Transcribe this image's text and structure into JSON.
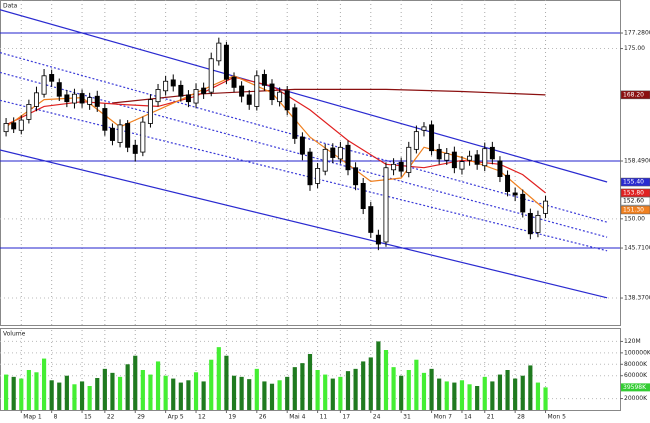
{
  "chart_data": {
    "type": "candlestick",
    "title": "Data",
    "open": [
      162.8,
      164.1,
      163.0,
      164.6,
      166.5,
      168.3,
      171.2,
      170.0,
      168.2,
      167.0,
      168.4,
      166.8,
      168.0,
      166.2,
      163.3,
      161.2,
      164.0,
      160.8,
      159.8,
      164.0,
      167.2,
      168.8,
      170.4,
      169.6,
      168.2,
      167.0,
      169.2,
      168.6,
      173.2,
      175.5,
      170.8,
      169.5,
      168.2,
      166.5,
      171.2,
      169.8,
      167.2,
      168.8,
      166.3,
      162.0,
      159.8,
      155.2,
      157.0,
      160.4,
      158.8,
      160.8,
      157.5,
      155.2,
      151.8,
      147.6,
      146.6,
      157.2,
      158.3,
      156.8,
      160.2,
      163.0,
      163.8,
      160.2,
      158.6,
      159.8,
      157.3,
      158.6,
      159.4,
      157.8,
      160.5,
      158.5,
      156.4,
      153.8,
      153.6,
      150.8,
      148.0,
      150.8
    ],
    "high": [
      164.8,
      164.9,
      165.2,
      167.5,
      169.4,
      172.0,
      171.9,
      170.6,
      168.9,
      169.1,
      169.0,
      168.5,
      168.8,
      166.9,
      164.0,
      164.6,
      164.5,
      161.6,
      165.0,
      168.3,
      169.8,
      171.0,
      171.2,
      170.3,
      168.9,
      169.9,
      170.0,
      174.4,
      176.6,
      176.0,
      171.5,
      170.2,
      168.9,
      171.8,
      171.9,
      170.5,
      169.3,
      169.5,
      166.9,
      162.7,
      160.4,
      158.2,
      161.0,
      161.1,
      161.3,
      161.5,
      158.3,
      156.0,
      152.5,
      148.4,
      158.3,
      158.9,
      159.0,
      161.3,
      163.7,
      164.2,
      164.4,
      161.0,
      160.4,
      160.6,
      159.2,
      160.0,
      160.1,
      161.2,
      161.3,
      159.2,
      157.1,
      154.6,
      154.3,
      151.5,
      151.2,
      153.4
    ],
    "low": [
      162.1,
      162.6,
      162.4,
      164.0,
      165.8,
      167.8,
      169.4,
      167.3,
      166.4,
      166.2,
      166.3,
      166.0,
      165.7,
      162.2,
      160.8,
      160.5,
      159.8,
      158.4,
      159.2,
      163.4,
      166.5,
      168.1,
      168.7,
      167.2,
      166.4,
      166.3,
      167.6,
      168.0,
      172.5,
      169.8,
      168.6,
      167.1,
      166.0,
      165.9,
      168.8,
      166.7,
      166.5,
      165.2,
      161.0,
      158.6,
      154.1,
      154.5,
      156.4,
      158.2,
      158.1,
      156.4,
      154.2,
      150.7,
      147.2,
      145.4,
      145.9,
      156.4,
      156.2,
      156.1,
      159.6,
      162.1,
      159.3,
      158.0,
      157.9,
      156.7,
      156.5,
      157.8,
      157.2,
      157.0,
      158.0,
      155.4,
      153.3,
      152.6,
      150.2,
      147.0,
      147.3,
      150.1
    ],
    "close": [
      164.0,
      163.2,
      164.5,
      166.8,
      168.5,
      171.0,
      170.2,
      168.0,
      167.2,
      168.3,
      167.0,
      167.8,
      166.5,
      163.0,
      161.5,
      163.8,
      160.5,
      159.6,
      164.2,
      167.5,
      169.0,
      170.2,
      169.5,
      168.0,
      167.2,
      169.0,
      168.4,
      173.5,
      175.8,
      170.5,
      169.3,
      168.0,
      166.8,
      171.0,
      169.6,
      167.5,
      168.6,
      166.0,
      161.8,
      159.5,
      155.0,
      157.4,
      160.2,
      159.0,
      160.5,
      157.2,
      155.0,
      151.5,
      148.0,
      146.3,
      157.5,
      158.0,
      157.0,
      160.5,
      162.8,
      163.5,
      160.0,
      158.8,
      159.6,
      157.5,
      158.4,
      159.2,
      158.0,
      160.3,
      158.8,
      156.2,
      154.0,
      153.5,
      151.0,
      147.8,
      150.5,
      152.6
    ],
    "up_color": "#ffffff",
    "down_color": "#000000",
    "xlim": [
      -0.8,
      80.8
    ],
    "xticks": [
      {
        "value": 2,
        "label": "Map 1"
      },
      {
        "value": 6,
        "label": "8"
      },
      {
        "value": 10,
        "label": "15"
      },
      {
        "value": 13,
        "label": "22"
      },
      {
        "value": 17,
        "label": "29"
      },
      {
        "value": 21,
        "label": "Arp 5"
      },
      {
        "value": 25,
        "label": "12"
      },
      {
        "value": 29,
        "label": "19"
      },
      {
        "value": 33,
        "label": "26"
      },
      {
        "value": 37,
        "label": "Mai 4"
      },
      {
        "value": 41,
        "label": "11"
      },
      {
        "value": 44,
        "label": "17"
      },
      {
        "value": 48,
        "label": "24"
      },
      {
        "value": 52,
        "label": "31"
      },
      {
        "value": 56,
        "label": "Mon 7"
      },
      {
        "value": 60,
        "label": "14"
      },
      {
        "value": 63,
        "label": "21"
      },
      {
        "value": 67,
        "label": "28"
      },
      {
        "value": 71,
        "label": "Mon 5"
      }
    ],
    "ylim": [
      134.41,
      182.13
    ],
    "yticks": [
      {
        "value": 177.28,
        "label": "177.2800"
      },
      {
        "value": 175,
        "label": "175.00"
      },
      {
        "value": 158.49,
        "label": "158.4900"
      },
      {
        "value": 150,
        "label": "150.00"
      },
      {
        "value": 145.71,
        "label": "145.7100"
      },
      {
        "value": 138.37,
        "label": "138.3700"
      }
    ],
    "grid": true,
    "levels": [
      177.28,
      158.49,
      145.71
    ],
    "level_color": "#2222cc",
    "overlays": [
      {
        "color": "#2a2ad0",
        "style": "solid",
        "x": [
          -0.8,
          79.1
        ],
        "values": [
          180.7,
          155.4
        ]
      },
      {
        "color": "#2a2ad0",
        "style": "solid",
        "x": [
          -0.8,
          79.1
        ],
        "values": [
          160.1,
          138.4
        ]
      },
      {
        "color": "#3a3ad8",
        "style": "dotted",
        "x": [
          -0.8,
          79.1
        ],
        "values": [
          174.4,
          149.5
        ]
      },
      {
        "color": "#3a3ad8",
        "style": "dotted",
        "x": [
          -0.8,
          79.1
        ],
        "values": [
          171.5,
          147.3
        ]
      },
      {
        "color": "#3a3ad8",
        "style": "dotted",
        "x": [
          -0.8,
          79.1
        ],
        "values": [
          167.4,
          145.3
        ]
      },
      {
        "color": "#8b1010",
        "style": "solid",
        "x": [
          14,
          25,
          38,
          50,
          60,
          71
        ],
        "values": [
          167.0,
          168.3,
          169.0,
          169.0,
          168.7,
          168.2
        ]
      },
      {
        "color": "#e02020",
        "style": "solid",
        "x": [
          0,
          5,
          10,
          15,
          20,
          25,
          30,
          35,
          40,
          45,
          50,
          55,
          60,
          65,
          68,
          71
        ],
        "values": [
          163.8,
          166.5,
          167.2,
          166.8,
          166.5,
          168.0,
          170.8,
          169.5,
          166.0,
          161.5,
          158.0,
          157.5,
          158.6,
          158.0,
          156.5,
          153.8
        ]
      },
      {
        "color": "#f08020",
        "style": "solid",
        "x": [
          0,
          5,
          10,
          15,
          20,
          25,
          30,
          35,
          40,
          45,
          48,
          52,
          55,
          60,
          65,
          71
        ],
        "values": [
          163.5,
          167.5,
          167.8,
          163.5,
          166.0,
          168.5,
          171.0,
          168.5,
          162.0,
          158.0,
          155.5,
          156.0,
          160.5,
          159.0,
          157.0,
          151.3
        ]
      }
    ],
    "price_labels": [
      {
        "value": 168.2,
        "label": "168.20",
        "color": "#8b1010"
      },
      {
        "value": 155.4,
        "label": "155.40",
        "color": "#2a2ad0"
      },
      {
        "value": 153.8,
        "label": "153.80",
        "color": "#e02020"
      },
      {
        "value": 152.6,
        "label": "152.60",
        "color": "#ffffff"
      },
      {
        "value": 151.3,
        "label": "151.30",
        "color": "#f08020"
      }
    ],
    "volume": {
      "title": "Volume",
      "values": [
        62000,
        58000,
        55000,
        70000,
        66000,
        90000,
        52000,
        48000,
        60000,
        45000,
        50000,
        42000,
        56000,
        72000,
        65000,
        58000,
        80000,
        95000,
        70000,
        62000,
        85000,
        60000,
        55000,
        48000,
        52000,
        66000,
        50000,
        88000,
        110000,
        95000,
        60000,
        58000,
        54000,
        72000,
        50000,
        46000,
        52000,
        58000,
        75000,
        82000,
        98000,
        70000,
        62000,
        55000,
        58000,
        68000,
        72000,
        85000,
        92000,
        120000,
        105000,
        75000,
        60000,
        70000,
        88000,
        65000,
        72000,
        55000,
        50000,
        48000,
        52000,
        45000,
        42000,
        58000,
        50000,
        62000,
        70000,
        55000,
        60000,
        78000,
        48000,
        39598
      ],
      "up_color": "#44ee33",
      "down_color": "#1f7a1f",
      "ylim": [
        0,
        140000
      ],
      "yticks": [
        {
          "value": 120000,
          "label": "120M"
        },
        {
          "value": 100000,
          "label": "100000K"
        },
        {
          "value": 80000,
          "label": "80000K"
        },
        {
          "value": 60000,
          "label": "60000K"
        },
        {
          "value": 20000,
          "label": "20000K"
        }
      ],
      "current": {
        "value": 39598,
        "label": "39598K",
        "color": "#33cc33"
      }
    }
  }
}
